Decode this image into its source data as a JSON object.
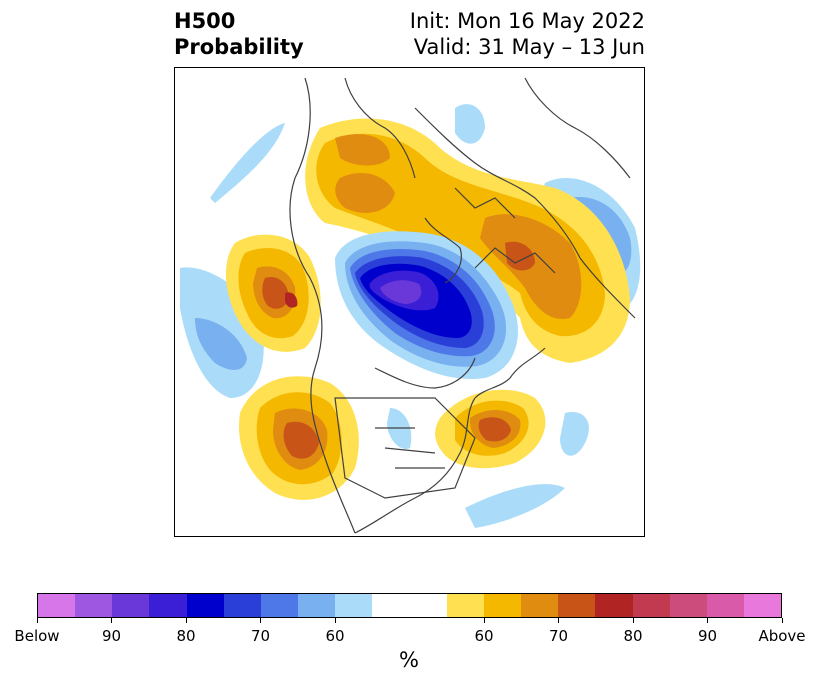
{
  "title": {
    "line1_left": "H500",
    "line2_left": "Probability",
    "line1_right": "Init: Mon 16 May 2022",
    "line2_right": "Valid: 31 May – 13 Jun"
  },
  "colorbar": {
    "colors": [
      "#d676e8",
      "#9e57e0",
      "#6a38d8",
      "#3a1fd6",
      "#0000cc",
      "#2a3fd8",
      "#4e78e8",
      "#78b0f0",
      "#aadcfa",
      "#ffffff",
      "#ffffff",
      "#ffe050",
      "#f5b800",
      "#e08c10",
      "#c85418",
      "#b02424",
      "#c23a50",
      "#cc4c7c",
      "#d95aa8",
      "#e878dc"
    ],
    "tick_labels": [
      "Below",
      "90",
      "80",
      "70",
      "60",
      "60",
      "70",
      "80",
      "90",
      "Above"
    ],
    "label": "%"
  }
}
